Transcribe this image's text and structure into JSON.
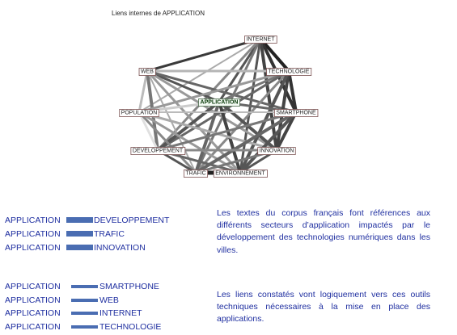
{
  "figure": {
    "title": "Liens internes de APPLICATION",
    "nodes": [
      {
        "id": "INTERNET",
        "center": false
      },
      {
        "id": "WEB",
        "center": false
      },
      {
        "id": "TECHNOLOGIE",
        "center": false
      },
      {
        "id": "APPLICATION",
        "center": true
      },
      {
        "id": "POPULATION",
        "center": false
      },
      {
        "id": "SMARTPHONE",
        "center": false
      },
      {
        "id": "DEVELOPPEMENT",
        "center": false
      },
      {
        "id": "INNOVATION",
        "center": false
      },
      {
        "id": "TRAFIC",
        "center": false
      },
      {
        "id": "ENVIRONNEMENT",
        "center": false
      }
    ],
    "edges": [
      {
        "a": "INTERNET",
        "b": "WEB",
        "shade": "#3a3a3a",
        "w": 3
      },
      {
        "a": "INTERNET",
        "b": "TECHNOLOGIE",
        "shade": "#222222",
        "w": 4
      },
      {
        "a": "INTERNET",
        "b": "APPLICATION",
        "shade": "#555555",
        "w": 3
      },
      {
        "a": "INTERNET",
        "b": "POPULATION",
        "shade": "#aaaaaa",
        "w": 2
      },
      {
        "a": "INTERNET",
        "b": "SMARTPHONE",
        "shade": "#333333",
        "w": 4
      },
      {
        "a": "INTERNET",
        "b": "DEVELOPPEMENT",
        "shade": "#888888",
        "w": 3
      },
      {
        "a": "INTERNET",
        "b": "INNOVATION",
        "shade": "#444444",
        "w": 4
      },
      {
        "a": "INTERNET",
        "b": "TRAFIC",
        "shade": "#777777",
        "w": 3
      },
      {
        "a": "INTERNET",
        "b": "ENVIRONNEMENT",
        "shade": "#555555",
        "w": 3
      },
      {
        "a": "WEB",
        "b": "TECHNOLOGIE",
        "shade": "#b5b5b5",
        "w": 3
      },
      {
        "a": "WEB",
        "b": "APPLICATION",
        "shade": "#555555",
        "w": 3
      },
      {
        "a": "WEB",
        "b": "POPULATION",
        "shade": "#bbbbbb",
        "w": 3
      },
      {
        "a": "WEB",
        "b": "SMARTPHONE",
        "shade": "#666666",
        "w": 3
      },
      {
        "a": "WEB",
        "b": "DEVELOPPEMENT",
        "shade": "#777777",
        "w": 4
      },
      {
        "a": "WEB",
        "b": "INNOVATION",
        "shade": "#999999",
        "w": 3
      },
      {
        "a": "WEB",
        "b": "TRAFIC",
        "shade": "#aaaaaa",
        "w": 2
      },
      {
        "a": "WEB",
        "b": "ENVIRONNEMENT",
        "shade": "#999999",
        "w": 3
      },
      {
        "a": "TECHNOLOGIE",
        "b": "APPLICATION",
        "shade": "#777777",
        "w": 3
      },
      {
        "a": "TECHNOLOGIE",
        "b": "POPULATION",
        "shade": "#999999",
        "w": 3
      },
      {
        "a": "TECHNOLOGIE",
        "b": "SMARTPHONE",
        "shade": "#333333",
        "w": 4
      },
      {
        "a": "TECHNOLOGIE",
        "b": "DEVELOPPEMENT",
        "shade": "#666666",
        "w": 3
      },
      {
        "a": "TECHNOLOGIE",
        "b": "INNOVATION",
        "shade": "#444444",
        "w": 4
      },
      {
        "a": "TECHNOLOGIE",
        "b": "TRAFIC",
        "shade": "#888888",
        "w": 3
      },
      {
        "a": "TECHNOLOGIE",
        "b": "ENVIRONNEMENT",
        "shade": "#555555",
        "w": 4
      },
      {
        "a": "APPLICATION",
        "b": "POPULATION",
        "shade": "#cccccc",
        "w": 3
      },
      {
        "a": "APPLICATION",
        "b": "SMARTPHONE",
        "shade": "#666666",
        "w": 3
      },
      {
        "a": "APPLICATION",
        "b": "DEVELOPPEMENT",
        "shade": "#555555",
        "w": 4
      },
      {
        "a": "APPLICATION",
        "b": "INNOVATION",
        "shade": "#555555",
        "w": 4
      },
      {
        "a": "APPLICATION",
        "b": "TRAFIC",
        "shade": "#666666",
        "w": 4
      },
      {
        "a": "APPLICATION",
        "b": "ENVIRONNEMENT",
        "shade": "#444444",
        "w": 4
      },
      {
        "a": "POPULATION",
        "b": "SMARTPHONE",
        "shade": "#bbbbbb",
        "w": 2
      },
      {
        "a": "POPULATION",
        "b": "DEVELOPPEMENT",
        "shade": "#e0e0e0",
        "w": 3
      },
      {
        "a": "POPULATION",
        "b": "INNOVATION",
        "shade": "#aaaaaa",
        "w": 3
      },
      {
        "a": "POPULATION",
        "b": "TRAFIC",
        "shade": "#888888",
        "w": 3
      },
      {
        "a": "POPULATION",
        "b": "ENVIRONNEMENT",
        "shade": "#999999",
        "w": 3
      },
      {
        "a": "SMARTPHONE",
        "b": "DEVELOPPEMENT",
        "shade": "#777777",
        "w": 3
      },
      {
        "a": "SMARTPHONE",
        "b": "INNOVATION",
        "shade": "#444444",
        "w": 4
      },
      {
        "a": "SMARTPHONE",
        "b": "TRAFIC",
        "shade": "#666666",
        "w": 4
      },
      {
        "a": "SMARTPHONE",
        "b": "ENVIRONNEMENT",
        "shade": "#555555",
        "w": 4
      },
      {
        "a": "DEVELOPPEMENT",
        "b": "INNOVATION",
        "shade": "#888888",
        "w": 3
      },
      {
        "a": "DEVELOPPEMENT",
        "b": "TRAFIC",
        "shade": "#555555",
        "w": 3
      },
      {
        "a": "DEVELOPPEMENT",
        "b": "ENVIRONNEMENT",
        "shade": "#666666",
        "w": 3
      },
      {
        "a": "INNOVATION",
        "b": "TRAFIC",
        "shade": "#777777",
        "w": 3
      },
      {
        "a": "INNOVATION",
        "b": "ENVIRONNEMENT",
        "shade": "#555555",
        "w": 3
      },
      {
        "a": "TRAFIC",
        "b": "ENVIRONNEMENT",
        "shade": "#222222",
        "w": 5
      }
    ]
  },
  "links_group_1": [
    {
      "source": "APPLICATION",
      "target": "DEVELOPPEMENT"
    },
    {
      "source": "APPLICATION",
      "target": "TRAFIC"
    },
    {
      "source": "APPLICATION",
      "target": "INNOVATION"
    }
  ],
  "links_group_2": [
    {
      "source": "APPLICATION",
      "target": "SMARTPHONE"
    },
    {
      "source": "APPLICATION",
      "target": "WEB"
    },
    {
      "source": "APPLICATION",
      "target": "INTERNET"
    },
    {
      "source": "APPLICATION",
      "target": "TECHNOLOGIE"
    }
  ],
  "text": {
    "paragraph_1": "Les textes du corpus français font références aux différents secteurs d’application impactés par le développement des technologies numériques dans les villes.",
    "paragraph_2": "Les liens constatés vont logiquement vers ces outils techniques nécessaires à la mise en place des applications."
  },
  "colors": {
    "text_blue": "#1f2fa0",
    "bar_blue": "#4a6db2",
    "center_label": "#0a3b0a"
  }
}
